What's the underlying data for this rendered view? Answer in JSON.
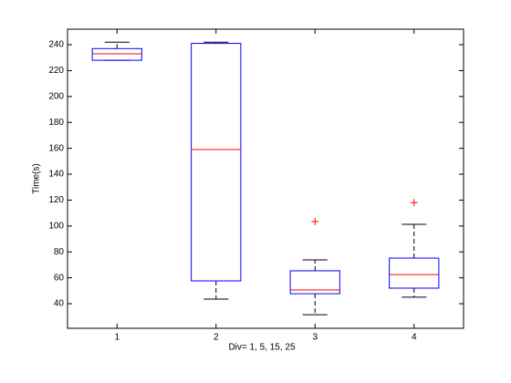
{
  "chart_data": {
    "type": "box",
    "xlabel": "Div= 1, 5, 15, 25",
    "ylabel": "Time(s)",
    "categories": [
      "1",
      "2",
      "3",
      "4"
    ],
    "xlim": [
      0.5,
      4.5
    ],
    "ylim": [
      21,
      252
    ],
    "yticks": [
      40,
      60,
      80,
      100,
      120,
      140,
      160,
      180,
      200,
      220,
      240
    ],
    "box_color": "#0000ff",
    "median_color": "#ff0000",
    "whisker_color": "#000000",
    "outlier_color": "#ff0000",
    "boxes": [
      {
        "whisker_low": 228,
        "q1": 228,
        "median": 233,
        "q3": 237,
        "whisker_high": 242,
        "outliers": []
      },
      {
        "whisker_low": 43.5,
        "q1": 57.6,
        "median": 159,
        "q3": 241,
        "whisker_high": 242,
        "outliers": []
      },
      {
        "whisker_low": 31.5,
        "q1": 47.7,
        "median": 50.6,
        "q3": 65.4,
        "whisker_high": 73.8,
        "outliers": [
          103.4
        ]
      },
      {
        "whisker_low": 45,
        "q1": 52,
        "median": 62.5,
        "q3": 75.2,
        "whisker_high": 101.3,
        "outliers": [
          118
        ]
      }
    ]
  }
}
